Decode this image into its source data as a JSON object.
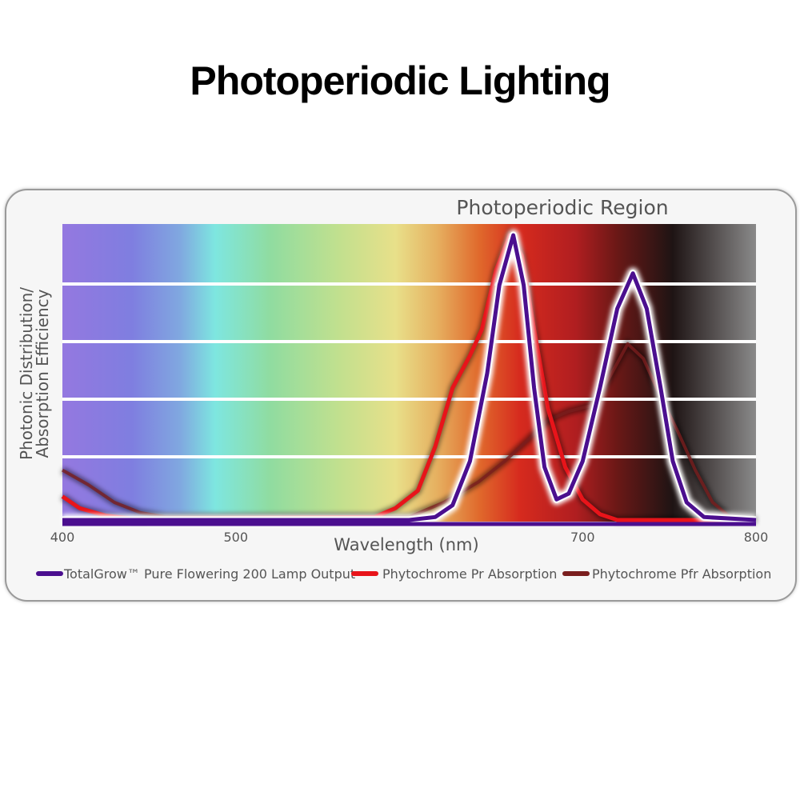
{
  "title": "Photoperiodic Lighting",
  "chart_data": {
    "type": "line",
    "title": "",
    "annotation": "Photoperiodic Region",
    "xlabel": "Wavelength (nm)",
    "ylabel_line1": "Photonic Distribution/",
    "ylabel_line2": "Absorption Efficiency",
    "xlim": [
      400,
      800
    ],
    "ylim": [
      0,
      1
    ],
    "x_ticks": [
      400,
      500,
      700,
      800
    ],
    "x_tick_labels": [
      "400",
      "500",
      "700",
      "800"
    ],
    "grid": "horizontal",
    "background": "visible spectrum gradient",
    "legend_position": "bottom",
    "series": [
      {
        "name": "TotalGrow™ Pure Flowering 200 Lamp Output",
        "color": "#4b0f8f",
        "points": [
          [
            400,
            0
          ],
          [
            600,
            0
          ],
          [
            615,
            0.01
          ],
          [
            625,
            0.05
          ],
          [
            635,
            0.2
          ],
          [
            645,
            0.5
          ],
          [
            652,
            0.8
          ],
          [
            660,
            0.97
          ],
          [
            666,
            0.8
          ],
          [
            672,
            0.45
          ],
          [
            678,
            0.18
          ],
          [
            685,
            0.07
          ],
          [
            692,
            0.09
          ],
          [
            700,
            0.2
          ],
          [
            710,
            0.45
          ],
          [
            720,
            0.72
          ],
          [
            729,
            0.84
          ],
          [
            737,
            0.72
          ],
          [
            745,
            0.45
          ],
          [
            752,
            0.2
          ],
          [
            760,
            0.06
          ],
          [
            770,
            0.01
          ],
          [
            800,
            0
          ]
        ]
      },
      {
        "name": "Phytochrome Pr Absorption",
        "color": "#e8141a",
        "points": [
          [
            400,
            0.08
          ],
          [
            410,
            0.04
          ],
          [
            425,
            0.015
          ],
          [
            440,
            0.005
          ],
          [
            580,
            0.01
          ],
          [
            592,
            0.04
          ],
          [
            605,
            0.1
          ],
          [
            615,
            0.25
          ],
          [
            625,
            0.45
          ],
          [
            635,
            0.56
          ],
          [
            642,
            0.65
          ],
          [
            650,
            0.85
          ],
          [
            658,
            0.97
          ],
          [
            665,
            0.9
          ],
          [
            672,
            0.65
          ],
          [
            680,
            0.38
          ],
          [
            690,
            0.18
          ],
          [
            700,
            0.07
          ],
          [
            710,
            0.02
          ],
          [
            720,
            0
          ],
          [
            800,
            0
          ]
        ]
      },
      {
        "name": "Phytochrome Pfr Absorption",
        "color": "#7a1e1e",
        "points": [
          [
            400,
            0.17
          ],
          [
            415,
            0.12
          ],
          [
            430,
            0.06
          ],
          [
            445,
            0.025
          ],
          [
            460,
            0.01
          ],
          [
            600,
            0.01
          ],
          [
            620,
            0.06
          ],
          [
            640,
            0.13
          ],
          [
            655,
            0.2
          ],
          [
            668,
            0.27
          ],
          [
            680,
            0.34
          ],
          [
            692,
            0.37
          ],
          [
            705,
            0.39
          ],
          [
            715,
            0.48
          ],
          [
            726,
            0.6
          ],
          [
            735,
            0.55
          ],
          [
            745,
            0.42
          ],
          [
            755,
            0.3
          ],
          [
            765,
            0.17
          ],
          [
            775,
            0.06
          ],
          [
            785,
            0.01
          ],
          [
            800,
            0
          ]
        ]
      }
    ]
  }
}
